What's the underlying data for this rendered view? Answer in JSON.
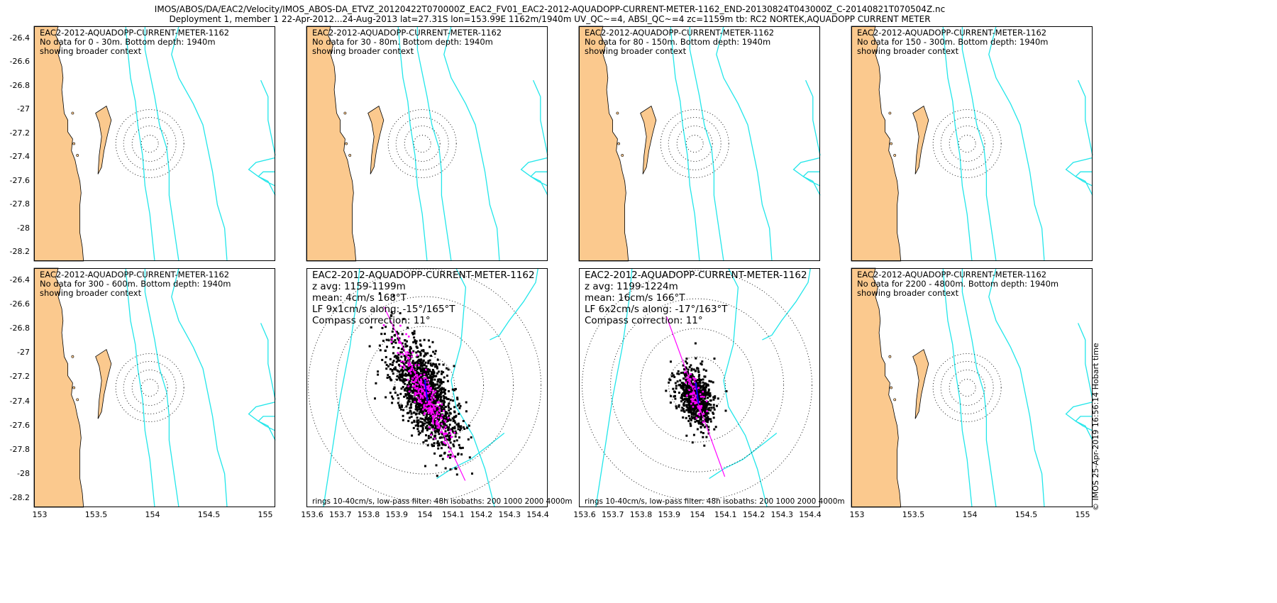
{
  "header": {
    "line1": "IMOS/ABOS/DA/EAC2/Velocity/IMOS_ABOS-DA_ETVZ_20120422T070000Z_EAC2_FV01_EAC2-2012-AQUADOPP-CURRENT-METER-1162_END-20130824T043000Z_C-20140821T070504Z.nc",
    "line2": "Deployment 1, member 1 22-Apr-2012...24-Aug-2013 lat=27.31S lon=153.99E 1162m/1940m UV_QC~=4, ABSI_QC~=4 zc=1159m tb: RC2 NORTEK,AQUADOPP CURRENT METER"
  },
  "credit": "© IMOS 25-Apr-2019 16:56:14 Hobart time",
  "colors": {
    "land": "#fbc98e",
    "isobath": "#22e6ea",
    "scatter": "#000000",
    "lowpass": "#ff00ff",
    "mean": "#0000ff"
  },
  "chart_data": [
    {
      "type": "scatter",
      "title": "EAC2-2012-AQUADOPP-CURRENT-METER-1162",
      "lines": [
        "No data for 0 - 30m. Bottom depth: 1940m",
        "showing broader context"
      ],
      "yticks": [
        "-26.4",
        "-26.6",
        "-26.8",
        "-27",
        "-27.2",
        "-27.4",
        "-27.6",
        "-27.8",
        "-28",
        "-28.2"
      ],
      "xticks": [],
      "rings_center": [
        153.99,
        -27.31
      ]
    },
    {
      "type": "scatter",
      "title": "EAC2-2012-AQUADOPP-CURRENT-METER-1162",
      "lines": [
        "No data for 30 - 80m. Bottom depth: 1940m",
        "showing broader context"
      ],
      "yticks": [],
      "xticks": [],
      "rings_center": [
        153.99,
        -27.31
      ]
    },
    {
      "type": "scatter",
      "title": "EAC2-2012-AQUADOPP-CURRENT-METER-1162",
      "lines": [
        "No data for 80 - 150m. Bottom depth: 1940m",
        "showing broader context"
      ],
      "yticks": [],
      "xticks": [],
      "rings_center": [
        153.99,
        -27.31
      ]
    },
    {
      "type": "scatter",
      "title": "EAC2-2012-AQUADOPP-CURRENT-METER-1162",
      "lines": [
        "No data for 150 - 300m. Bottom depth: 1940m",
        "showing broader context"
      ],
      "yticks": [],
      "xticks": [],
      "rings_center": [
        153.99,
        -27.31
      ]
    },
    {
      "type": "scatter",
      "title": "EAC2-2012-AQUADOPP-CURRENT-METER-1162",
      "lines": [
        "No data for 300 - 600m. Bottom depth: 1940m",
        "showing broader context"
      ],
      "yticks": [
        "-26.4",
        "-26.6",
        "-26.8",
        "-27",
        "-27.2",
        "-27.4",
        "-27.6",
        "-27.8",
        "-28",
        "-28.2"
      ],
      "xticks": [
        "153",
        "153.5",
        "154",
        "154.5",
        "155"
      ],
      "rings_center": [
        153.99,
        -27.31
      ]
    },
    {
      "type": "scatter",
      "title": "EAC2-2012-AQUADOPP-CURRENT-METER-1162",
      "lines": [
        "z avg: 1159-1199m",
        "mean: 4cm/s 168°T",
        "LF 9x1cm/s along: -15°/165°T",
        "Compass correction: 11°"
      ],
      "footnote": "rings 10-40cm/s, low-pass filter: 48h isobaths: 200 1000 2000 4000m",
      "xticks": [
        "153.6",
        "153.7",
        "153.8",
        "153.9",
        "154",
        "154.1",
        "154.2",
        "154.3",
        "154.4"
      ],
      "mean_speed_cm_s": 4,
      "mean_dir_degT": 168,
      "lf_major_cm_s": 9,
      "lf_minor_cm_s": 1,
      "along_deg": -15,
      "along_degT": 165,
      "compass_correction_deg": 11
    },
    {
      "type": "scatter",
      "title": "EAC2-2012-AQUADOPP-CURRENT-METER-1162",
      "lines": [
        "z avg: 1199-1224m",
        "mean: 16cm/s 166°T",
        "LF 6x2cm/s along: -17°/163°T",
        "Compass correction: 11°"
      ],
      "footnote": "rings 10-40cm/s, low-pass filter: 48h isobaths: 200 1000 2000 4000m",
      "xticks": [
        "153.6",
        "153.7",
        "153.8",
        "153.9",
        "154",
        "154.1",
        "154.2",
        "154.3",
        "154.4"
      ],
      "mean_speed_cm_s": 16,
      "mean_dir_degT": 166,
      "lf_major_cm_s": 6,
      "lf_minor_cm_s": 2,
      "along_deg": -17,
      "along_degT": 163,
      "compass_correction_deg": 11
    },
    {
      "type": "scatter",
      "title": "EAC2-2012-AQUADOPP-CURRENT-METER-1162",
      "lines": [
        "No data for 2200 - 4800m. Bottom depth: 1940m",
        "showing broader context"
      ],
      "yticks": [],
      "xticks": [
        "153",
        "153.5",
        "154",
        "154.5",
        "155"
      ],
      "rings_center": [
        153.99,
        -27.31
      ]
    }
  ]
}
